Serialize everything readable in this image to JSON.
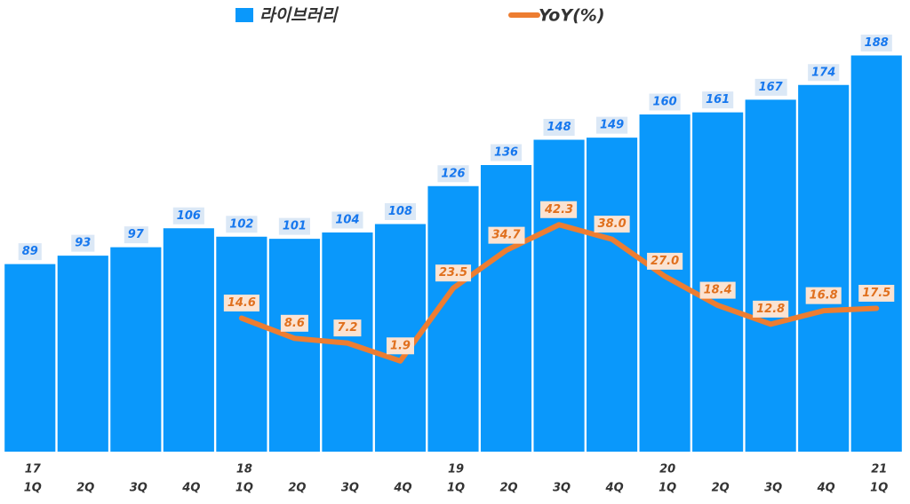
{
  "chart_data": {
    "type": "bar-line",
    "categories": [
      "1Q",
      "2Q",
      "3Q",
      "4Q",
      "1Q",
      "2Q",
      "3Q",
      "4Q",
      "1Q",
      "2Q",
      "3Q",
      "4Q",
      "1Q",
      "2Q",
      "3Q",
      "4Q",
      "1Q"
    ],
    "years": [
      "17",
      null,
      null,
      null,
      "18",
      null,
      null,
      null,
      "19",
      null,
      null,
      null,
      "20",
      null,
      null,
      null,
      "21"
    ],
    "series": [
      {
        "name": "라이브러리",
        "color": "#0a98fb",
        "type": "bar",
        "values": [
          89,
          93,
          97,
          106,
          102,
          101,
          104,
          108,
          126,
          136,
          148,
          149,
          160,
          161,
          167,
          174,
          188
        ]
      },
      {
        "name": "YoY(%)",
        "color": "#ed7d31",
        "type": "line",
        "axis": "y2",
        "values": [
          null,
          null,
          null,
          null,
          14.6,
          8.6,
          7.2,
          1.9,
          23.5,
          34.7,
          42.3,
          38.0,
          27.0,
          18.4,
          12.8,
          16.8,
          17.5
        ],
        "value_labels": [
          null,
          null,
          null,
          null,
          "14.6",
          "8.6",
          "7.2",
          "1.9",
          "23.5",
          "34.7",
          "42.3",
          "38.0",
          "27.0",
          "18.4",
          "12.8",
          "16.8",
          "17.5"
        ]
      }
    ],
    "ylim": [
      0,
      200
    ],
    "y2lim": [
      -25,
      100
    ],
    "grid": false
  }
}
